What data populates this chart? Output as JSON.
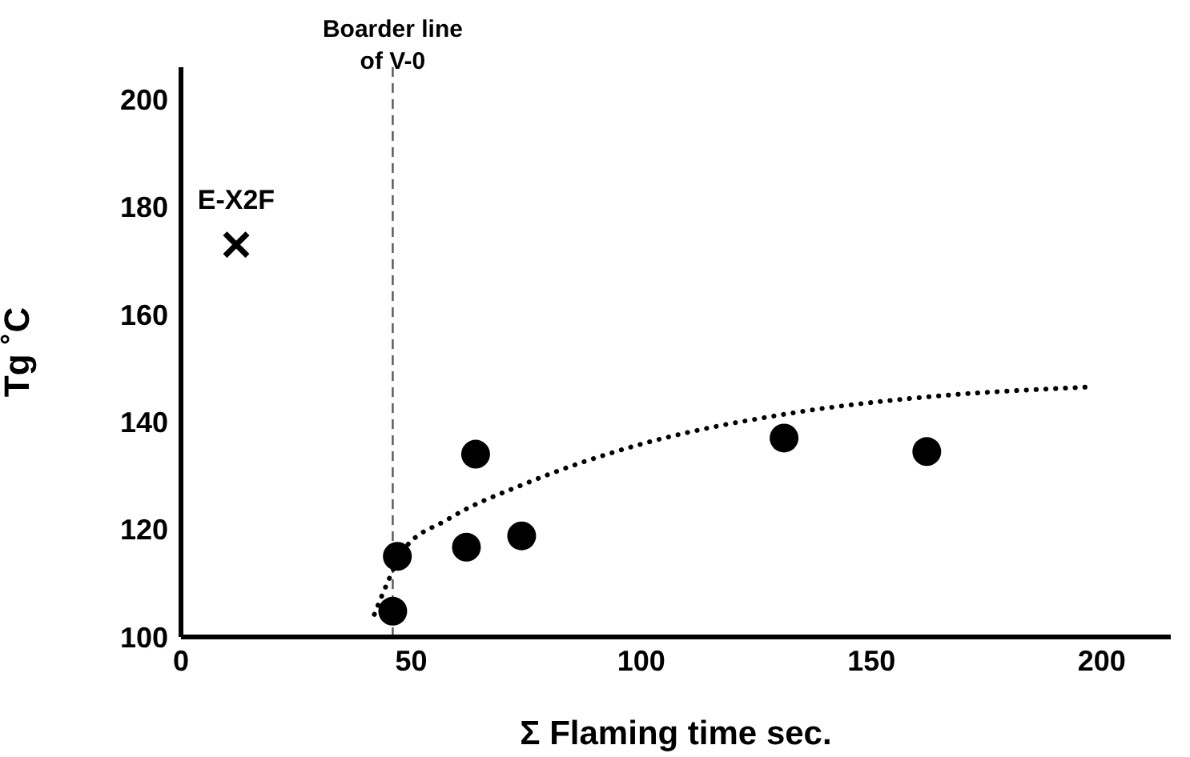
{
  "chart_data": {
    "type": "scatter",
    "xlabel": "Σ Flaming time  sec.",
    "ylabel": "Tg ˚C",
    "xlim": [
      0,
      215
    ],
    "xticks": [
      0,
      50,
      100,
      150,
      200
    ],
    "ylim": [
      100,
      206
    ],
    "yticks": [
      100,
      120,
      140,
      160,
      180,
      200
    ],
    "series": [
      {
        "marker": "circle",
        "color": "#000000",
        "x": [
          46,
          47,
          62,
          64,
          74,
          131,
          162
        ],
        "values": [
          104.8,
          115,
          116.7,
          134,
          118.8,
          137,
          134.5
        ]
      },
      {
        "name": "E-X2F",
        "marker": "cross",
        "color": "#000000",
        "x": [
          12
        ],
        "values": [
          173
        ]
      },
      {
        "type": "line",
        "marker": "none",
        "line_style": "dotted",
        "color": "#000000",
        "x": [
          42,
          45,
          48,
          58,
          75,
          98,
          133,
          160,
          197
        ],
        "values": [
          104.2,
          110.4,
          115.8,
          121.9,
          128.6,
          135.4,
          141.7,
          144.5,
          146.5
        ]
      }
    ],
    "ref_lines": [
      {
        "axis": "x",
        "value": 46,
        "label": "Boarder line\nof V-0",
        "color": "#555555",
        "line_style": "dashed"
      }
    ]
  }
}
